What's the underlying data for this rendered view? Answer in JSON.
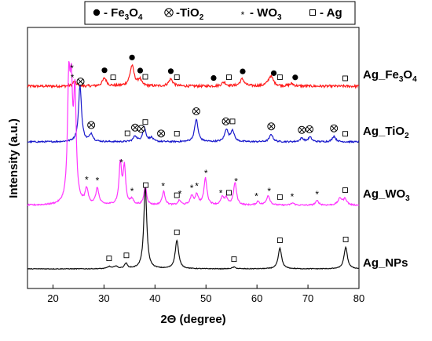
{
  "chart_data": {
    "type": "line",
    "title": "",
    "xlabel": "2Θ (degree)",
    "ylabel": "Intensity (a.u.)",
    "xlim": [
      15,
      80
    ],
    "xticks": [
      20,
      30,
      40,
      50,
      60,
      70,
      80
    ],
    "legend": {
      "placement": "top",
      "entries": [
        {
          "symbol": "filled-circle",
          "text": "- Fe",
          "sub1": "3",
          "mid": "O",
          "sub2": "4"
        },
        {
          "symbol": "circled-cross",
          "text": "-TiO",
          "sub1": "2",
          "mid": "",
          "sub2": ""
        },
        {
          "symbol": "star",
          "text": "- WO",
          "sub1": "3",
          "mid": "",
          "sub2": ""
        },
        {
          "symbol": "open-square",
          "text": "- Ag",
          "sub1": "",
          "mid": "",
          "sub2": ""
        }
      ]
    },
    "series": [
      {
        "name": "Ag_Fe3O4",
        "label_main": "Ag_Fe",
        "label_sub1": "3",
        "label_mid": "O",
        "label_sub2": "4",
        "color": "#ff1a1a",
        "baseline": 24,
        "noise": 1.6,
        "peaks": [
          [
            24.2,
            6,
            0.4
          ],
          [
            30.1,
            10,
            0.5
          ],
          [
            35.5,
            26,
            0.5
          ],
          [
            37.0,
            8,
            0.4
          ],
          [
            43.1,
            9,
            0.5
          ],
          [
            53.5,
            5,
            0.5
          ],
          [
            57.1,
            9,
            0.5
          ],
          [
            62.7,
            13,
            0.6
          ],
          [
            66.8,
            3,
            0.5
          ]
        ],
        "markers": [
          {
            "x": 30.1,
            "sym": "filled-circle"
          },
          {
            "x": 35.5,
            "sym": "filled-circle"
          },
          {
            "x": 37.1,
            "sym": "filled-circle"
          },
          {
            "x": 43.1,
            "sym": "filled-circle"
          },
          {
            "x": 51.5,
            "sym": "filled-circle"
          },
          {
            "x": 57.2,
            "sym": "filled-circle"
          },
          {
            "x": 63.3,
            "sym": "filled-circle"
          },
          {
            "x": 67.5,
            "sym": "filled-circle"
          },
          {
            "x": 23.8,
            "sym": "star"
          },
          {
            "x": 31.8,
            "sym": "open-square"
          },
          {
            "x": 38.1,
            "sym": "open-square"
          },
          {
            "x": 44.3,
            "sym": "open-square"
          },
          {
            "x": 54.5,
            "sym": "open-square"
          },
          {
            "x": 64.5,
            "sym": "open-square"
          },
          {
            "x": 77.3,
            "sym": "open-square"
          }
        ]
      },
      {
        "name": "Ag_TiO2",
        "label_main": "Ag_TiO",
        "label_sub1": "2",
        "label_mid": "",
        "label_sub2": "",
        "color": "#1a1acc",
        "baseline": 20,
        "noise": 0.8,
        "peaks": [
          [
            25.3,
            60,
            0.35
          ],
          [
            27.5,
            8,
            0.4
          ],
          [
            36.1,
            6,
            0.4
          ],
          [
            37.9,
            15,
            0.4
          ],
          [
            39.3,
            4,
            0.4
          ],
          [
            48.1,
            24,
            0.4
          ],
          [
            54.0,
            13,
            0.4
          ],
          [
            55.2,
            12,
            0.4
          ],
          [
            62.8,
            8,
            0.4
          ],
          [
            68.8,
            4,
            0.4
          ],
          [
            70.4,
            5,
            0.4
          ],
          [
            75.1,
            6,
            0.4
          ]
        ],
        "markers": [
          {
            "x": 25.4,
            "sym": "circled-cross"
          },
          {
            "x": 27.5,
            "sym": "circled-cross"
          },
          {
            "x": 36.1,
            "sym": "circled-cross"
          },
          {
            "x": 37.3,
            "sym": "circled-cross"
          },
          {
            "x": 41.2,
            "sym": "circled-cross"
          },
          {
            "x": 48.1,
            "sym": "circled-cross"
          },
          {
            "x": 53.9,
            "sym": "circled-cross"
          },
          {
            "x": 62.8,
            "sym": "circled-cross"
          },
          {
            "x": 68.8,
            "sym": "circled-cross"
          },
          {
            "x": 70.3,
            "sym": "circled-cross"
          },
          {
            "x": 75.1,
            "sym": "circled-cross"
          },
          {
            "x": 34.6,
            "sym": "open-square"
          },
          {
            "x": 38.1,
            "sym": "open-square"
          },
          {
            "x": 44.3,
            "sym": "open-square"
          },
          {
            "x": 55.2,
            "sym": "open-square"
          },
          {
            "x": 77.3,
            "sym": "open-square"
          }
        ]
      },
      {
        "name": "Ag_WO3",
        "label_main": "Ag_WO",
        "label_sub1": "3",
        "label_mid": "",
        "label_sub2": "",
        "color": "#ff33ff",
        "baseline": 14,
        "noise": 0.9,
        "peaks": [
          [
            23.1,
            150,
            0.3
          ],
          [
            23.6,
            130,
            0.3
          ],
          [
            24.3,
            140,
            0.3
          ],
          [
            26.6,
            20,
            0.35
          ],
          [
            28.7,
            22,
            0.35
          ],
          [
            33.2,
            55,
            0.3
          ],
          [
            34.0,
            50,
            0.3
          ],
          [
            35.5,
            7,
            0.35
          ],
          [
            38.1,
            26,
            0.3
          ],
          [
            41.7,
            18,
            0.35
          ],
          [
            44.8,
            6,
            0.35
          ],
          [
            47.2,
            12,
            0.35
          ],
          [
            48.2,
            14,
            0.35
          ],
          [
            49.9,
            36,
            0.35
          ],
          [
            53.2,
            10,
            0.35
          ],
          [
            54.0,
            9,
            0.35
          ],
          [
            55.7,
            30,
            0.35
          ],
          [
            60.2,
            5,
            0.35
          ],
          [
            62.2,
            13,
            0.4
          ],
          [
            67.0,
            3,
            0.4
          ],
          [
            71.8,
            6,
            0.4
          ],
          [
            76.3,
            9,
            0.5
          ],
          [
            77.3,
            8,
            0.4
          ]
        ],
        "markers": [
          {
            "x": 23.7,
            "sym": "star"
          },
          {
            "x": 26.6,
            "sym": "star"
          },
          {
            "x": 28.7,
            "sym": "star"
          },
          {
            "x": 33.4,
            "sym": "star"
          },
          {
            "x": 35.5,
            "sym": "star"
          },
          {
            "x": 41.6,
            "sym": "star"
          },
          {
            "x": 44.9,
            "sym": "star"
          },
          {
            "x": 47.2,
            "sym": "star"
          },
          {
            "x": 48.2,
            "sym": "star"
          },
          {
            "x": 50.0,
            "sym": "star"
          },
          {
            "x": 52.9,
            "sym": "star"
          },
          {
            "x": 55.9,
            "sym": "star"
          },
          {
            "x": 59.9,
            "sym": "star"
          },
          {
            "x": 62.4,
            "sym": "star"
          },
          {
            "x": 66.9,
            "sym": "star"
          },
          {
            "x": 71.8,
            "sym": "star"
          },
          {
            "x": 44.3,
            "sym": "open-square"
          },
          {
            "x": 54.5,
            "sym": "open-square"
          },
          {
            "x": 64.5,
            "sym": "open-square"
          },
          {
            "x": 77.3,
            "sym": "open-square"
          }
        ]
      },
      {
        "name": "Ag_NPs",
        "label_main": "Ag_NPs",
        "label_sub1": "",
        "label_mid": "",
        "label_sub2": "",
        "color": "#111111",
        "baseline": 0,
        "noise": 0.4,
        "peaks": [
          [
            31.0,
            2.5,
            0.4
          ],
          [
            32.3,
            3,
            0.4
          ],
          [
            34.3,
            6,
            0.35
          ],
          [
            38.1,
            95,
            0.35
          ],
          [
            44.3,
            33,
            0.4
          ],
          [
            55.5,
            2,
            0.4
          ],
          [
            64.5,
            24,
            0.4
          ],
          [
            77.4,
            25,
            0.4
          ]
        ],
        "markers": [
          {
            "x": 31.0,
            "sym": "open-square"
          },
          {
            "x": 34.4,
            "sym": "open-square"
          },
          {
            "x": 38.2,
            "sym": "open-square"
          },
          {
            "x": 44.3,
            "sym": "open-square"
          },
          {
            "x": 55.5,
            "sym": "open-square"
          },
          {
            "x": 64.5,
            "sym": "open-square"
          },
          {
            "x": 77.4,
            "sym": "open-square"
          }
        ]
      }
    ]
  }
}
